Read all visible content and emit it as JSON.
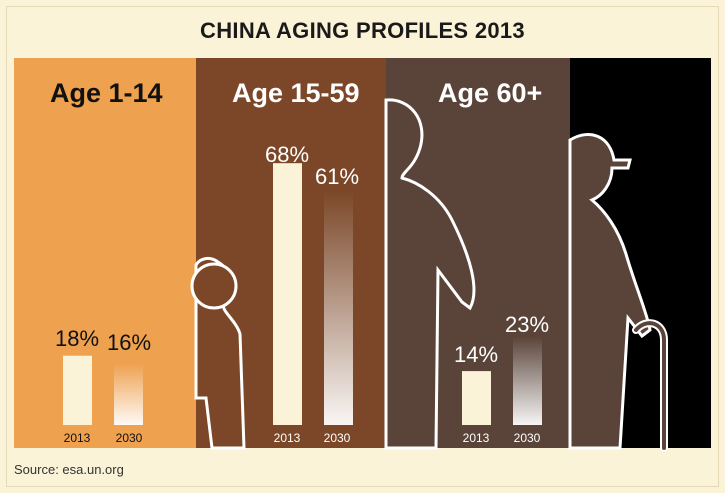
{
  "title": "CHINA AGING PROFILES 2013",
  "source": "Source: esa.un.org",
  "colors": {
    "background": "#fbf3d8",
    "youth": "#eea14f",
    "working": "#7b4728",
    "elderly": "#5a443a",
    "dark": "#000000",
    "bar_2013": "#fbf3d8"
  },
  "chart_data": {
    "type": "bar",
    "title": "CHINA AGING PROFILES 2013",
    "categories": [
      "Age 1-14",
      "Age 15-59",
      "Age 60+"
    ],
    "series": [
      {
        "name": "2013",
        "values": [
          18,
          68,
          14
        ]
      },
      {
        "name": "2030",
        "values": [
          16,
          61,
          23
        ]
      }
    ],
    "labels": {
      "age_1_14": {
        "title": "Age 1-14",
        "v2013": "18%",
        "v2030": "16%"
      },
      "age_15_59": {
        "title": "Age 15-59",
        "v2013": "68%",
        "v2030": "61%"
      },
      "age_60": {
        "title": "Age 60+",
        "v2013": "14%",
        "v2030": "23%"
      }
    },
    "year_labels": [
      "2013",
      "2030"
    ],
    "unit": "%",
    "grid": false,
    "legend": "none"
  }
}
